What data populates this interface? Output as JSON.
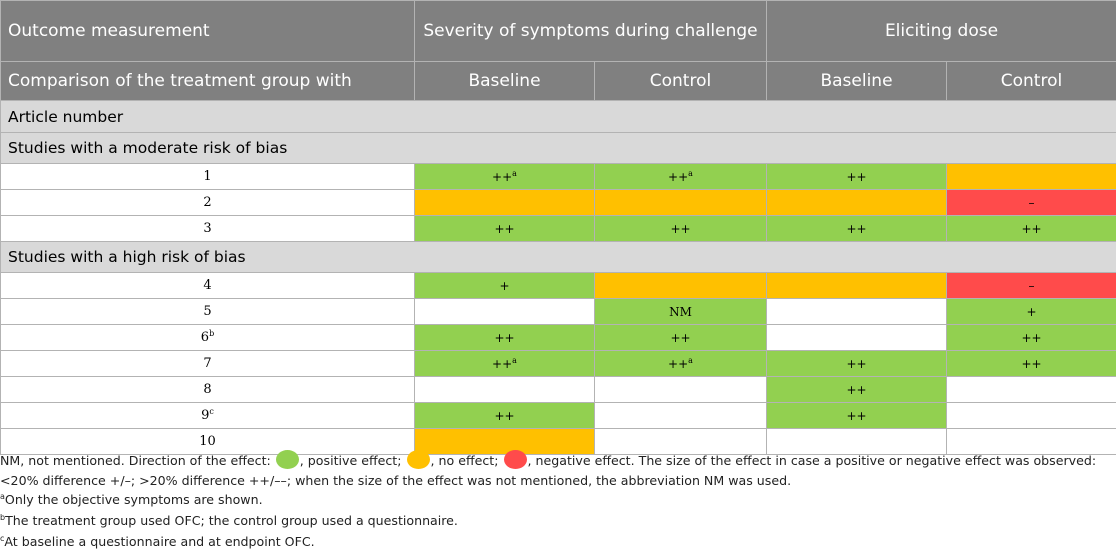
{
  "header": {
    "outcome_label": "Outcome measurement",
    "group_severity": "Severity of symptoms during challenge",
    "group_dose": "Eliciting dose",
    "comparison_label": "Comparison of the treatment group with",
    "sub_baseline": "Baseline",
    "sub_control": "Control",
    "article_label": "Article number"
  },
  "sections": {
    "moderate": "Studies with a moderate risk of bias",
    "high": "Studies with a high risk of bias"
  },
  "rows": [
    {
      "num": "1",
      "sup": "",
      "cells": [
        {
          "t": "++",
          "s": "a",
          "c": "g"
        },
        {
          "t": "++",
          "s": "a",
          "c": "g"
        },
        {
          "t": "++",
          "s": "",
          "c": "g"
        },
        {
          "t": "",
          "s": "",
          "c": "o"
        }
      ]
    },
    {
      "num": "2",
      "sup": "",
      "cells": [
        {
          "t": "",
          "s": "",
          "c": "o"
        },
        {
          "t": "",
          "s": "",
          "c": "o"
        },
        {
          "t": "",
          "s": "",
          "c": "o"
        },
        {
          "t": "–",
          "s": "",
          "c": "r"
        }
      ]
    },
    {
      "num": "3",
      "sup": "",
      "cells": [
        {
          "t": "++",
          "s": "",
          "c": "g"
        },
        {
          "t": "++",
          "s": "",
          "c": "g"
        },
        {
          "t": "++",
          "s": "",
          "c": "g"
        },
        {
          "t": "++",
          "s": "",
          "c": "g"
        }
      ]
    },
    {
      "num": "4",
      "sup": "",
      "cells": [
        {
          "t": "+",
          "s": "",
          "c": "g"
        },
        {
          "t": "",
          "s": "",
          "c": "o"
        },
        {
          "t": "",
          "s": "",
          "c": "o"
        },
        {
          "t": "–",
          "s": "",
          "c": "r"
        }
      ]
    },
    {
      "num": "5",
      "sup": "",
      "cells": [
        {
          "t": "",
          "s": "",
          "c": "w"
        },
        {
          "t": "NM",
          "s": "",
          "c": "g"
        },
        {
          "t": "",
          "s": "",
          "c": "w"
        },
        {
          "t": "+",
          "s": "",
          "c": "g"
        }
      ]
    },
    {
      "num": "6",
      "sup": "b",
      "cells": [
        {
          "t": "++",
          "s": "",
          "c": "g"
        },
        {
          "t": "++",
          "s": "",
          "c": "g"
        },
        {
          "t": "",
          "s": "",
          "c": "w"
        },
        {
          "t": "++",
          "s": "",
          "c": "g"
        }
      ]
    },
    {
      "num": "7",
      "sup": "",
      "cells": [
        {
          "t": "++",
          "s": "a",
          "c": "g"
        },
        {
          "t": "++",
          "s": "a",
          "c": "g"
        },
        {
          "t": "++",
          "s": "",
          "c": "g"
        },
        {
          "t": "++",
          "s": "",
          "c": "g"
        }
      ]
    },
    {
      "num": "8",
      "sup": "",
      "cells": [
        {
          "t": "",
          "s": "",
          "c": "w"
        },
        {
          "t": "",
          "s": "",
          "c": "w"
        },
        {
          "t": "++",
          "s": "",
          "c": "g"
        },
        {
          "t": "",
          "s": "",
          "c": "w"
        }
      ]
    },
    {
      "num": "9",
      "sup": "c",
      "cells": [
        {
          "t": "++",
          "s": "",
          "c": "g"
        },
        {
          "t": "",
          "s": "",
          "c": "w"
        },
        {
          "t": "++",
          "s": "",
          "c": "g"
        },
        {
          "t": "",
          "s": "",
          "c": "w"
        }
      ]
    },
    {
      "num": "10",
      "sup": "",
      "cells": [
        {
          "t": "",
          "s": "",
          "c": "o"
        },
        {
          "t": "",
          "s": "",
          "c": "w"
        },
        {
          "t": "",
          "s": "",
          "c": "w"
        },
        {
          "t": "",
          "s": "",
          "c": "w"
        }
      ]
    }
  ],
  "legend": {
    "part1": "NM, not mentioned. Direction of the effect:",
    "positive": ", positive effect;",
    "neutral": ", no effect;",
    "negative": ", negative effect. The size of the effect in case a positive or negative effect was observed: <20% difference +/–; >20% difference ++/––; when the size of the effect was not mentioned, the abbreviation NM was used.",
    "colors": {
      "positive": "#92d050",
      "neutral": "#ffc000",
      "negative": "#ff4b4b"
    }
  },
  "footnotes": [
    {
      "mark": "a",
      "text": "Only the objective symptoms are shown."
    },
    {
      "mark": "b",
      "text": "The treatment group used OFC; the control group used a questionnaire."
    },
    {
      "mark": "c",
      "text": "At baseline a questionnaire and at endpoint OFC."
    }
  ]
}
